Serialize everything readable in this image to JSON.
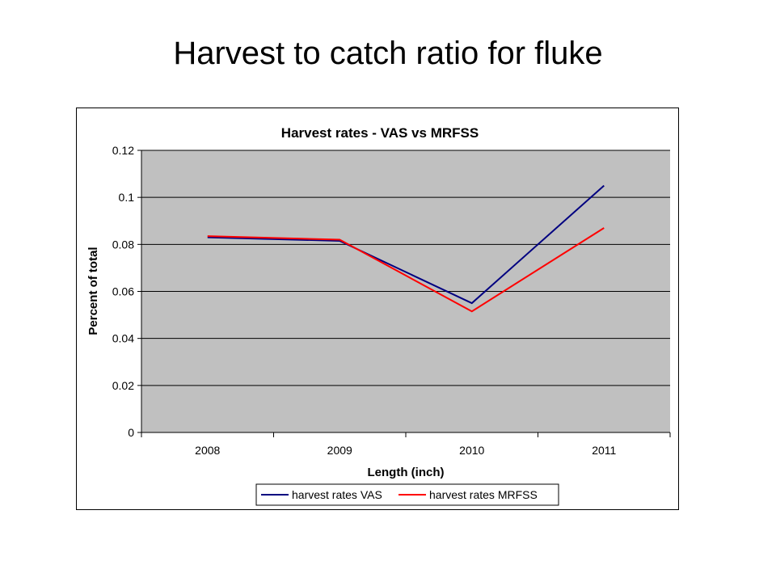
{
  "slide": {
    "title": "Harvest to catch ratio for fluke"
  },
  "chart_data": {
    "type": "line",
    "title": "Harvest rates - VAS vs MRFSS",
    "xlabel": "Length (inch)",
    "ylabel": "Percent of total",
    "categories": [
      "2008",
      "2009",
      "2010",
      "2011"
    ],
    "yticks": [
      "0",
      "0.02",
      "0.04",
      "0.06",
      "0.08",
      "0.1",
      "0.12"
    ],
    "ylim": [
      0,
      0.12
    ],
    "grid": true,
    "legend": "bottom",
    "plot_background": "#c0c0c0",
    "series": [
      {
        "name": "harvest rates VAS",
        "color": "#000080",
        "values": [
          0.083,
          0.0815,
          0.055,
          0.105
        ]
      },
      {
        "name": "harvest rates MRFSS",
        "color": "#ff0000",
        "values": [
          0.0835,
          0.082,
          0.0515,
          0.087
        ]
      }
    ]
  }
}
